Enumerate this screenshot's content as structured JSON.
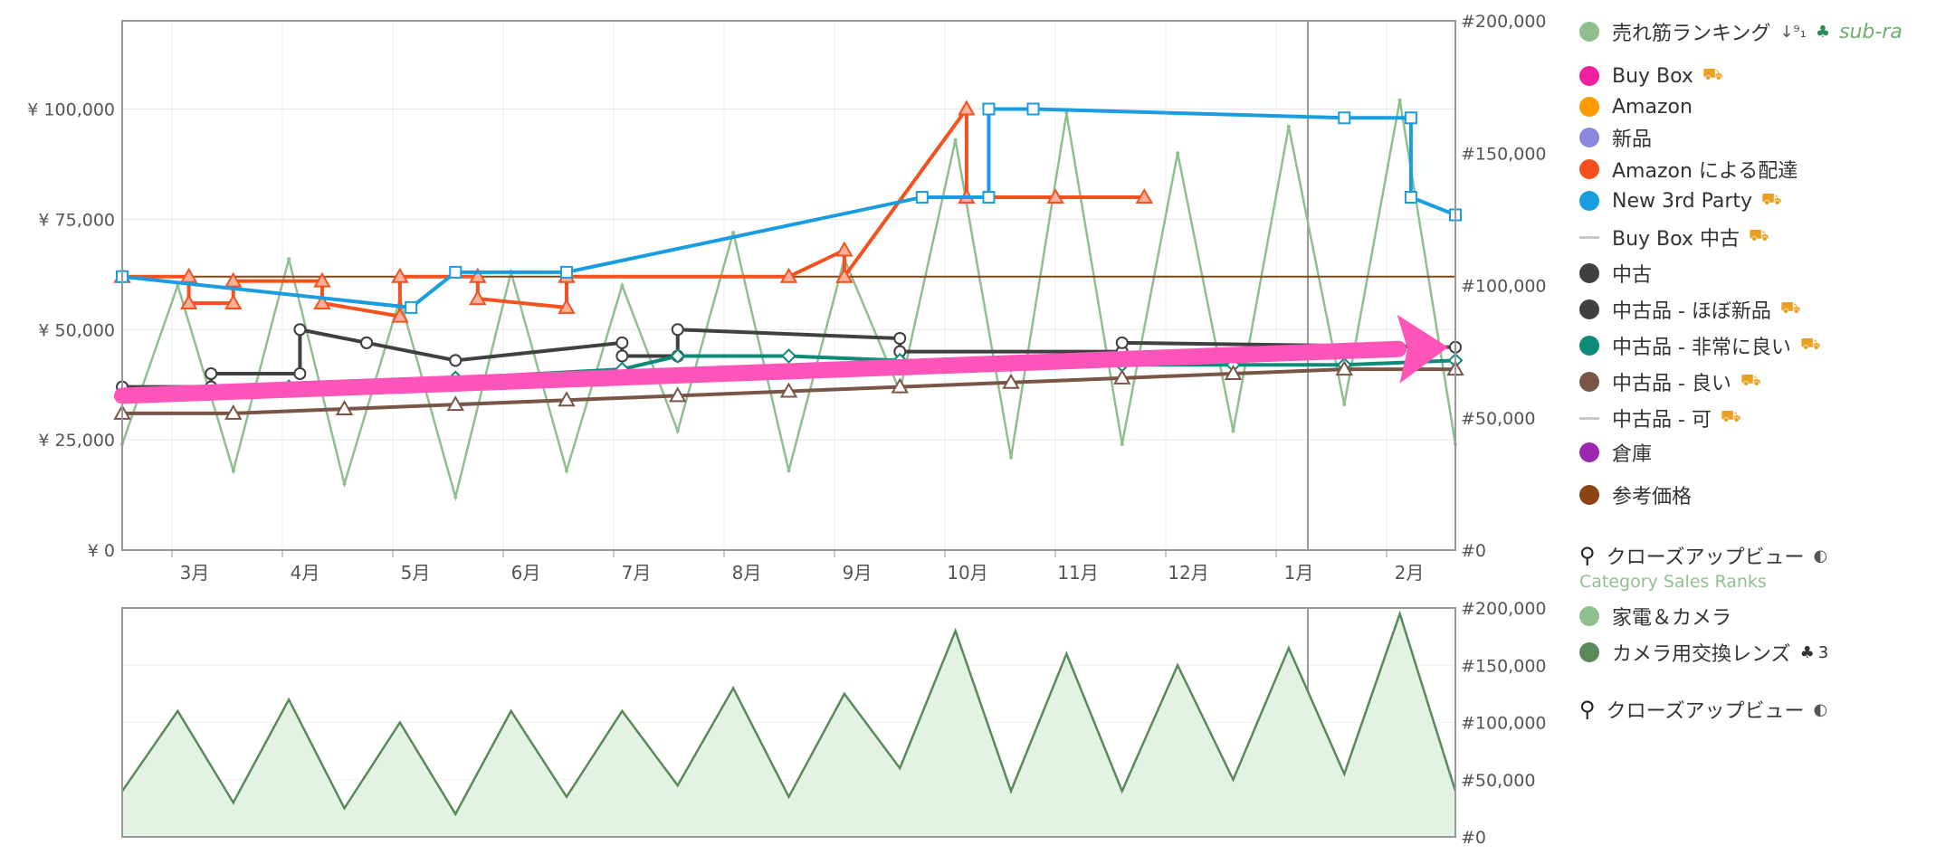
{
  "chart_data": {
    "type": "line",
    "upper": {
      "price_axis_ticks": [
        "¥ 0",
        "¥ 25,000",
        "¥ 50,000",
        "¥ 75,000",
        "¥ 100,000"
      ],
      "price_axis_values": [
        0,
        25000,
        50000,
        75000,
        100000
      ],
      "price_ylim": [
        0,
        120000
      ],
      "rank_axis_ticks": [
        "#0",
        "#50,000",
        "#100,000",
        "#150,000",
        "#200,000"
      ],
      "rank_axis_values": [
        0,
        50000,
        100000,
        150000,
        200000
      ],
      "rank_ylim": [
        0,
        200000
      ],
      "months": [
        "3月",
        "4月",
        "5月",
        "6月",
        "7月",
        "8月",
        "9月",
        "10月",
        "11月",
        "12月",
        "1月",
        "2月"
      ],
      "reference_price": 62000,
      "series": [
        {
          "name": "売れ筋ランキング",
          "color": "#8fbf8f",
          "axis": "rank",
          "x": [
            0,
            0.5,
            1,
            1.5,
            2,
            2.5,
            3,
            3.5,
            4,
            4.5,
            5,
            5.5,
            6,
            6.5,
            7,
            7.5,
            8,
            8.5,
            9,
            9.5,
            10,
            10.5,
            11,
            11.5,
            12
          ],
          "values": [
            40000,
            100000,
            30000,
            110000,
            25000,
            95000,
            20000,
            105000,
            30000,
            100000,
            45000,
            120000,
            30000,
            110000,
            60000,
            155000,
            35000,
            165000,
            40000,
            150000,
            45000,
            160000,
            55000,
            170000,
            40000
          ]
        },
        {
          "name": "Amazon による配達",
          "color": "#f4511e",
          "axis": "price",
          "x": [
            0,
            0.6,
            0.6,
            1.0,
            1.0,
            1.8,
            1.8,
            2.5,
            2.5,
            3.2,
            3.2,
            4.0,
            4.0,
            6.0,
            6.5,
            6.5,
            7.6,
            7.6,
            8.4,
            9.2
          ],
          "values": [
            62000,
            62000,
            56000,
            56000,
            61000,
            61000,
            56000,
            53000,
            62000,
            62000,
            57000,
            55000,
            62000,
            62000,
            68000,
            62000,
            100000,
            80000,
            80000,
            80000
          ]
        },
        {
          "name": "New 3rd Party",
          "color": "#1a9de0",
          "axis": "price",
          "x": [
            0,
            2.6,
            3.0,
            4.0,
            7.2,
            7.8,
            7.8,
            8.2,
            11.0,
            11.6,
            11.6,
            12.0
          ],
          "values": [
            62000,
            55000,
            63000,
            63000,
            80000,
            80000,
            100000,
            100000,
            98000,
            98000,
            80000,
            76000
          ]
        },
        {
          "name": "中古",
          "color": "#404040",
          "axis": "price",
          "x": [
            0,
            0.8,
            0.8,
            1.6,
            1.6,
            2.2,
            2.2,
            3.0,
            3.0,
            4.5,
            4.5,
            5.0,
            5.0,
            7.0,
            7.0,
            9.0,
            9.0,
            12.0
          ],
          "values": [
            37000,
            37000,
            40000,
            40000,
            50000,
            47000,
            47000,
            43000,
            43000,
            47000,
            44000,
            44000,
            50000,
            48000,
            45000,
            45000,
            47000,
            46000
          ]
        },
        {
          "name": "中古品 - 非常に良い",
          "color": "#0e8a78",
          "axis": "price",
          "x": [
            0,
            1.5,
            3.0,
            4.5,
            5.0,
            6.0,
            7.0,
            8.0,
            9.0,
            10.0,
            11.0,
            12.0
          ],
          "values": [
            35000,
            37000,
            39000,
            41000,
            44000,
            44000,
            43000,
            42000,
            42000,
            42000,
            42000,
            43000
          ]
        },
        {
          "name": "中古品 - 良い",
          "color": "#795548",
          "axis": "price",
          "x": [
            0,
            1.0,
            2.0,
            3.0,
            4.0,
            5.0,
            6.0,
            7.0,
            8.0,
            9.0,
            10.0,
            11.0,
            12.0
          ],
          "values": [
            31000,
            31000,
            32000,
            33000,
            34000,
            35000,
            36000,
            37000,
            38000,
            39000,
            40000,
            41000,
            41000
          ]
        }
      ]
    },
    "lower": {
      "rank_axis_ticks": [
        "#0",
        "#50,000",
        "#100,000",
        "#150,000",
        "#200,000"
      ],
      "rank_axis_values": [
        0,
        50000,
        100000,
        150000,
        200000
      ],
      "rank_ylim": [
        0,
        200000
      ],
      "series": [
        {
          "name": "カメラ用交換レンズ",
          "color": "#5a8a5a",
          "x": [
            0,
            0.5,
            1,
            1.5,
            2,
            2.5,
            3,
            3.5,
            4,
            4.5,
            5,
            5.5,
            6,
            6.5,
            7,
            7.5,
            8,
            8.5,
            9,
            9.5,
            10,
            10.5,
            11,
            11.5,
            12
          ],
          "values": [
            40000,
            110000,
            30000,
            120000,
            25000,
            100000,
            20000,
            110000,
            35000,
            110000,
            45000,
            130000,
            35000,
            125000,
            60000,
            180000,
            40000,
            160000,
            40000,
            150000,
            50000,
            165000,
            55000,
            195000,
            40000
          ]
        }
      ]
    },
    "annotation": {
      "type": "arrow",
      "color": "#ff55bb",
      "from": [
        0,
        35000
      ],
      "to": [
        12,
        46000
      ]
    }
  },
  "legend": {
    "sales_rank": {
      "label": "売れ筋ランキング",
      "color": "#8fbf8f",
      "sort_icon": "↓⁹₁",
      "sub_label": "sub-ra"
    },
    "items": [
      {
        "label": "Buy Box",
        "color": "#ee1fa0",
        "shape": "dot",
        "truck": true
      },
      {
        "label": "Amazon",
        "color": "#ff9900",
        "shape": "dot",
        "truck": false
      },
      {
        "label": "新品",
        "color": "#8888dd",
        "shape": "dot",
        "truck": false
      },
      {
        "label": "Amazon による配達",
        "color": "#f4511e",
        "shape": "dot",
        "truck": false
      },
      {
        "label": "New 3rd Party",
        "color": "#1a9de0",
        "shape": "dot",
        "truck": true
      },
      {
        "label": "Buy Box 中古",
        "color": "#c8c8c8",
        "shape": "dash",
        "truck": true
      },
      {
        "label": "中古",
        "color": "#404040",
        "shape": "dot",
        "truck": false
      },
      {
        "label": "中古品 - ほぼ新品",
        "color": "#404040",
        "shape": "dot",
        "truck": true
      },
      {
        "label": "中古品 - 非常に良い",
        "color": "#0e8a78",
        "shape": "dot",
        "truck": true
      },
      {
        "label": "中古品 - 良い",
        "color": "#795548",
        "shape": "dot",
        "truck": true
      },
      {
        "label": "中古品 - 可",
        "color": "#c8c8c8",
        "shape": "dash",
        "truck": true
      },
      {
        "label": "倉庫",
        "color": "#9c27b0",
        "shape": "dot",
        "truck": false
      },
      {
        "label": "参考価格",
        "color": "#8b4513",
        "shape": "dot",
        "truck": false
      }
    ],
    "closeup_label": "クローズアップビュー",
    "category_title": "Category Sales Ranks",
    "category_items": [
      {
        "label": "家電＆カメラ",
        "color": "#8fbf8f"
      },
      {
        "label": "カメラ用交換レンズ",
        "color": "#5a8a5a",
        "sub_count": "3"
      }
    ],
    "closeup_label_2": "クローズアップビュー"
  }
}
